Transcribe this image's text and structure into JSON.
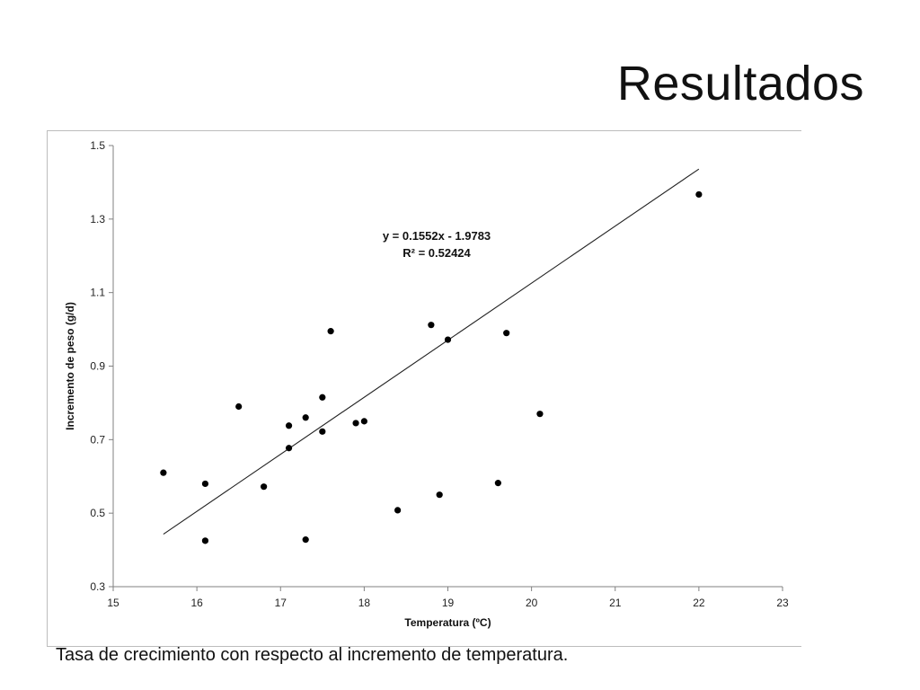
{
  "slide": {
    "title": "Resultados",
    "caption": "Tasa de crecimiento con respecto al incremento de temperatura."
  },
  "chart_data": {
    "type": "scatter",
    "title": "",
    "xlabel": "Temperatura (ºC)",
    "ylabel": "Incremento de peso (g/d)",
    "xlim": [
      15,
      23
    ],
    "ylim": [
      0.3,
      1.5
    ],
    "x_ticks": [
      15,
      16,
      17,
      18,
      19,
      20,
      21,
      22,
      23
    ],
    "y_ticks": [
      0.3,
      0.5,
      0.7,
      0.9,
      1.1,
      1.3,
      1.5
    ],
    "grid": false,
    "legend": "none",
    "marker_color": "#000000",
    "trendline": {
      "equation": "y = 0.1552x - 1.9783",
      "r_squared": "R² = 0.52424",
      "slope": 0.1552,
      "intercept": -1.9783,
      "x_range": [
        15.6,
        22
      ]
    },
    "points": [
      {
        "x": 15.6,
        "y": 0.61
      },
      {
        "x": 16.1,
        "y": 0.58
      },
      {
        "x": 16.1,
        "y": 0.425
      },
      {
        "x": 16.5,
        "y": 0.79
      },
      {
        "x": 16.8,
        "y": 0.572
      },
      {
        "x": 17.1,
        "y": 0.738
      },
      {
        "x": 17.1,
        "y": 0.677
      },
      {
        "x": 17.3,
        "y": 0.76
      },
      {
        "x": 17.3,
        "y": 0.428
      },
      {
        "x": 17.5,
        "y": 0.815
      },
      {
        "x": 17.5,
        "y": 0.722
      },
      {
        "x": 17.6,
        "y": 0.995
      },
      {
        "x": 17.9,
        "y": 0.745
      },
      {
        "x": 18.0,
        "y": 0.75
      },
      {
        "x": 18.4,
        "y": 0.508
      },
      {
        "x": 18.8,
        "y": 1.012
      },
      {
        "x": 18.9,
        "y": 0.55
      },
      {
        "x": 19.0,
        "y": 0.972
      },
      {
        "x": 19.6,
        "y": 0.582
      },
      {
        "x": 19.7,
        "y": 0.99
      },
      {
        "x": 20.1,
        "y": 0.77
      },
      {
        "x": 22.0,
        "y": 1.367
      }
    ]
  }
}
